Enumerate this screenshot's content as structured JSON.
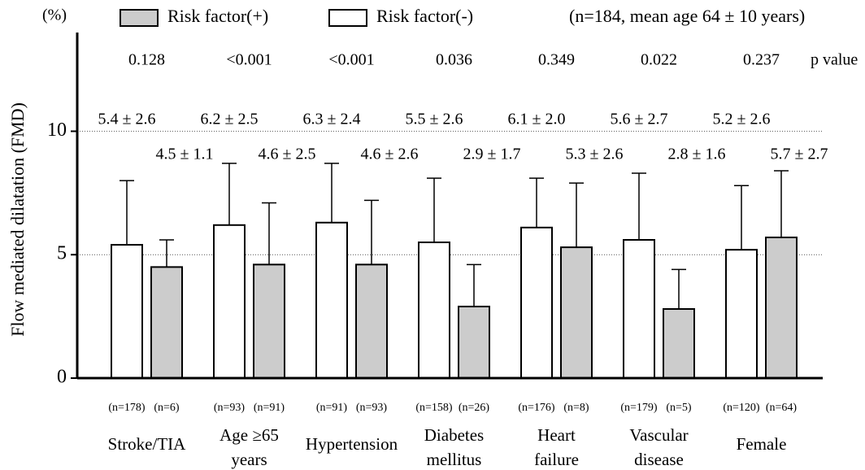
{
  "chart_data": {
    "type": "bar",
    "unit_label": "(%)",
    "y_label": "Flow mediated dilatation (FMD)",
    "note": "(n=184, mean age 64 ± 10 years)",
    "p_label": "p value",
    "p_values": [
      "0.128",
      "<0.001",
      "<0.001",
      "0.036",
      "0.349",
      "0.022",
      "0.237"
    ],
    "categories": [
      [
        "Stroke/TIA"
      ],
      [
        "Age ≥65",
        "years"
      ],
      [
        "Hypertension"
      ],
      [
        "Diabetes",
        "mellitus"
      ],
      [
        "Heart",
        "failure"
      ],
      [
        "Vascular",
        "disease"
      ],
      [
        "Female"
      ]
    ],
    "series": [
      {
        "name": "Risk factor(-)",
        "color": "#ffffff",
        "values": [
          5.4,
          6.2,
          6.3,
          5.5,
          6.1,
          5.6,
          5.2
        ],
        "errors": [
          2.6,
          2.5,
          2.4,
          2.6,
          2.0,
          2.7,
          2.6
        ],
        "value_labels": [
          "5.4 ± 2.6",
          "6.2 ± 2.5",
          "6.3 ± 2.4",
          "5.5 ± 2.6",
          "6.1 ± 2.0",
          "5.6 ± 2.7",
          "5.2 ± 2.6"
        ],
        "n_labels": [
          "(n=178)",
          "(n=93)",
          "(n=91)",
          "(n=158)",
          "(n=176)",
          "(n=179)",
          "(n=120)"
        ]
      },
      {
        "name": "Risk factor(+)",
        "color": "#cccccc",
        "values": [
          4.5,
          4.6,
          4.6,
          2.9,
          5.3,
          2.8,
          5.7
        ],
        "errors": [
          1.1,
          2.5,
          2.6,
          1.7,
          2.6,
          1.6,
          2.7
        ],
        "value_labels": [
          "4.5 ± 1.1",
          "4.6 ± 2.5",
          "4.6 ± 2.6",
          "2.9 ± 1.7",
          "5.3 ± 2.6",
          "2.8 ± 1.6",
          "5.7 ± 2.7"
        ],
        "n_labels": [
          "(n=6)",
          "(n=91)",
          "(n=93)",
          "(n=26)",
          "(n=8)",
          "(n=5)",
          "(n=64)"
        ]
      }
    ],
    "ylim": [
      0,
      14
    ],
    "yticks": [
      0,
      5,
      10
    ],
    "grid": true
  }
}
